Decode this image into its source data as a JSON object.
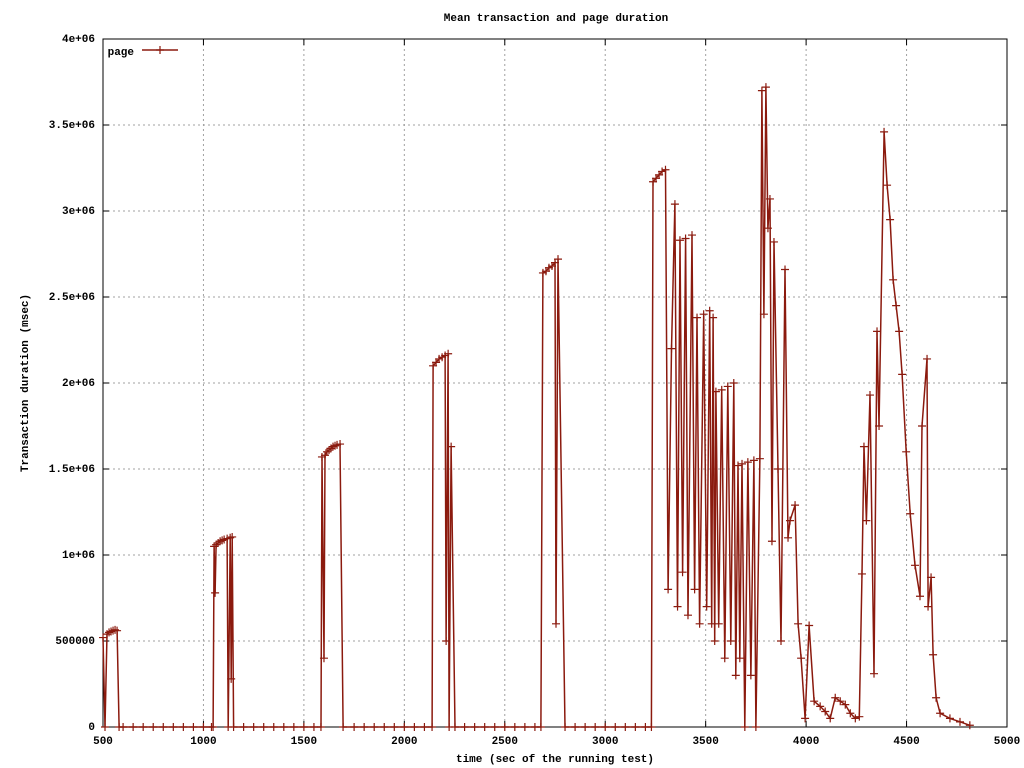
{
  "chart_data": {
    "type": "line",
    "title": "Mean transaction and page duration",
    "x_label": "time (sec of the running test)",
    "y_label": "Transaction duration (msec)",
    "xlim": [
      500,
      5000
    ],
    "xticks": [
      500,
      1000,
      1500,
      2000,
      2500,
      3000,
      3500,
      4000,
      4500,
      5000
    ],
    "ylim": [
      0,
      4000000
    ],
    "yticks": [
      0,
      500000,
      {
        "value": 1000000,
        "label": "1e+06"
      },
      {
        "value": 1500000,
        "label": "1.5e+06"
      },
      {
        "value": 2000000,
        "label": "2e+06"
      },
      {
        "value": 2500000,
        "label": "2.5e+06"
      },
      {
        "value": 3000000,
        "label": "3e+06"
      },
      {
        "value": 3500000,
        "label": "3.5e+06"
      },
      {
        "value": 4000000,
        "label": "4e+06"
      }
    ],
    "grid": true,
    "legend": "top-left",
    "series": [
      {
        "name": "page",
        "color": "#8b1a0e",
        "x": [
          500,
          510,
          520,
          530,
          540,
          550,
          560,
          570,
          580,
          600,
          650,
          700,
          750,
          800,
          850,
          900,
          950,
          1000,
          1040,
          1048,
          1053,
          1058,
          1063,
          1073,
          1083,
          1093,
          1103,
          1118,
          1123,
          1133,
          1138,
          1143,
          1150,
          1200,
          1250,
          1300,
          1350,
          1400,
          1450,
          1500,
          1550,
          1585,
          1590,
          1600,
          1605,
          1615,
          1625,
          1635,
          1645,
          1655,
          1665,
          1680,
          1695,
          1750,
          1800,
          1850,
          1900,
          1950,
          2000,
          2050,
          2100,
          2138,
          2143,
          2158,
          2173,
          2188,
          2203,
          2208,
          2218,
          2223,
          2233,
          2252,
          2300,
          2350,
          2400,
          2450,
          2500,
          2550,
          2600,
          2650,
          2680,
          2690,
          2705,
          2720,
          2735,
          2750,
          2755,
          2765,
          2800,
          2850,
          2900,
          2950,
          3000,
          3050,
          3100,
          3150,
          3200,
          3230,
          3238,
          3253,
          3268,
          3283,
          3300,
          3313,
          3330,
          3347,
          3360,
          3372,
          3385,
          3400,
          3412,
          3432,
          3445,
          3457,
          3470,
          3490,
          3505,
          3520,
          3530,
          3537,
          3545,
          3551,
          3565,
          3580,
          3595,
          3610,
          3625,
          3640,
          3650,
          3661,
          3670,
          3681,
          3695,
          3710,
          3725,
          3740,
          3750,
          3770,
          3780,
          3790,
          3800,
          3810,
          3820,
          3830,
          3840,
          3860,
          3875,
          3895,
          3910,
          3920,
          3945,
          3960,
          3975,
          3995,
          4015,
          4040,
          4070,
          4095,
          4120,
          4145,
          4170,
          4195,
          4220,
          4245,
          4265,
          4278,
          4288,
          4300,
          4318,
          4338,
          4353,
          4363,
          4388,
          4403,
          4418,
          4433,
          4448,
          4463,
          4478,
          4498,
          4518,
          4542,
          4567,
          4577,
          4602,
          4607,
          4622,
          4632,
          4647,
          4667,
          4716,
          4766,
          4815
        ],
        "values": [
          520000,
          0,
          540000,
          550000,
          555000,
          560000,
          565000,
          560000,
          0,
          0,
          0,
          0,
          0,
          0,
          0,
          0,
          0,
          0,
          0,
          0,
          1050000,
          780000,
          1060000,
          1070000,
          1080000,
          1085000,
          1090000,
          1095000,
          0,
          1100000,
          280000,
          1105000,
          0,
          0,
          0,
          0,
          0,
          0,
          0,
          0,
          0,
          0,
          1570000,
          400000,
          1580000,
          1600000,
          1610000,
          1620000,
          1630000,
          1635000,
          1640000,
          1645000,
          0,
          0,
          0,
          0,
          0,
          0,
          0,
          0,
          0,
          0,
          2100000,
          2120000,
          2140000,
          2150000,
          2160000,
          500000,
          2170000,
          0,
          1630000,
          0,
          0,
          0,
          0,
          0,
          0,
          0,
          0,
          0,
          0,
          2640000,
          2650000,
          2670000,
          2680000,
          2700000,
          600000,
          2720000,
          0,
          0,
          0,
          0,
          0,
          0,
          0,
          0,
          0,
          0,
          3170000,
          3190000,
          3210000,
          3230000,
          3240000,
          800000,
          2200000,
          3040000,
          700000,
          2830000,
          900000,
          2840000,
          650000,
          2860000,
          800000,
          2380000,
          600000,
          2400000,
          700000,
          2420000,
          600000,
          2380000,
          500000,
          1950000,
          600000,
          1960000,
          400000,
          1980000,
          500000,
          2000000,
          300000,
          1520000,
          400000,
          1530000,
          0,
          1540000,
          300000,
          1550000,
          0,
          1560000,
          3700000,
          2400000,
          3720000,
          2900000,
          3070000,
          1080000,
          2820000,
          1500000,
          500000,
          2660000,
          1100000,
          1200000,
          1290000,
          600000,
          400000,
          50000,
          590000,
          150000,
          120000,
          90000,
          50000,
          170000,
          150000,
          130000,
          80000,
          50000,
          60000,
          890000,
          1630000,
          1200000,
          1930000,
          310000,
          2300000,
          1750000,
          3460000,
          3150000,
          2950000,
          2600000,
          2450000,
          2300000,
          2050000,
          1600000,
          1240000,
          940000,
          760000,
          1750000,
          2140000,
          700000,
          870000,
          420000,
          170000,
          80000,
          50000,
          30000,
          10000
        ]
      }
    ]
  }
}
